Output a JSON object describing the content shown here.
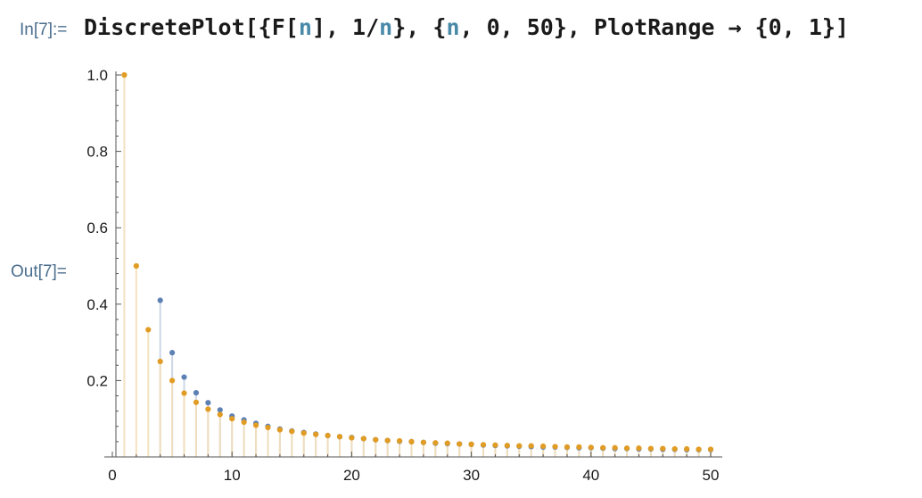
{
  "cell": {
    "in_label": "In[7]:=",
    "out_label": "Out[7]=",
    "tokens": [
      {
        "t": "DiscretePlot[{F[",
        "c": "plain"
      },
      {
        "t": "n",
        "c": "var"
      },
      {
        "t": "], 1/",
        "c": "plain"
      },
      {
        "t": "n",
        "c": "var"
      },
      {
        "t": "}, {",
        "c": "plain"
      },
      {
        "t": "n",
        "c": "var"
      },
      {
        "t": ", 0, 50}, PlotRange → {0, 1}]",
        "c": "plain"
      }
    ]
  },
  "chart_data": {
    "type": "scatter",
    "style": "discrete-stem",
    "xlim": [
      0,
      50
    ],
    "ylim": [
      0,
      1
    ],
    "x_ticks": [
      0,
      10,
      20,
      30,
      40,
      50
    ],
    "y_ticks": [
      0.2,
      0.4,
      0.6,
      0.8,
      1.0
    ],
    "y_tick_labels": [
      "0.2",
      "0.4",
      "0.6",
      "0.8",
      "1.0"
    ],
    "grid": false,
    "legend": "none",
    "colors": {
      "series1": "#5e81b5",
      "series2": "#e19c24"
    },
    "series": [
      {
        "x": [
          4,
          5,
          6,
          7,
          8,
          9,
          10,
          11,
          12,
          13,
          14,
          15,
          16,
          17,
          18,
          19,
          20,
          21,
          22,
          23,
          24,
          25,
          26,
          27,
          28,
          29,
          30,
          31,
          32,
          33,
          34,
          35,
          36,
          37,
          38,
          39,
          40,
          41,
          42,
          43,
          44,
          45,
          46,
          47,
          48,
          49,
          50
        ],
        "values": [
          0.41,
          0.273,
          0.209,
          0.168,
          0.142,
          0.123,
          0.107,
          0.097,
          0.088,
          0.08,
          0.073,
          0.068,
          0.064,
          0.06,
          0.056,
          0.053,
          0.051,
          0.048,
          0.045,
          0.043,
          0.041,
          0.04,
          0.038,
          0.036,
          0.035,
          0.034,
          0.033,
          0.031,
          0.03,
          0.029,
          0.028,
          0.027,
          0.026,
          0.026,
          0.025,
          0.024,
          0.024,
          0.023,
          0.022,
          0.022,
          0.021,
          0.021,
          0.02,
          0.02,
          0.019,
          0.019,
          0.019
        ]
      },
      {
        "x": [
          1,
          2,
          3,
          4,
          5,
          6,
          7,
          8,
          9,
          10,
          11,
          12,
          13,
          14,
          15,
          16,
          17,
          18,
          19,
          20,
          21,
          22,
          23,
          24,
          25,
          26,
          27,
          28,
          29,
          30,
          31,
          32,
          33,
          34,
          35,
          36,
          37,
          38,
          39,
          40,
          41,
          42,
          43,
          44,
          45,
          46,
          47,
          48,
          49,
          50
        ],
        "values": [
          1.0,
          0.5,
          0.333,
          0.25,
          0.2,
          0.167,
          0.143,
          0.125,
          0.111,
          0.1,
          0.091,
          0.083,
          0.077,
          0.071,
          0.067,
          0.0625,
          0.059,
          0.056,
          0.053,
          0.05,
          0.048,
          0.045,
          0.043,
          0.042,
          0.04,
          0.038,
          0.037,
          0.036,
          0.034,
          0.033,
          0.032,
          0.031,
          0.03,
          0.029,
          0.029,
          0.028,
          0.027,
          0.026,
          0.026,
          0.025,
          0.024,
          0.024,
          0.023,
          0.023,
          0.022,
          0.022,
          0.021,
          0.021,
          0.02,
          0.02
        ]
      }
    ]
  }
}
